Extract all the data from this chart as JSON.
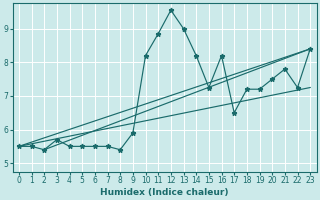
{
  "xlabel": "Humidex (Indice chaleur)",
  "bg_color": "#cceaea",
  "line_color": "#1a6b6b",
  "grid_color": "#ffffff",
  "xlim": [
    -0.5,
    23.5
  ],
  "ylim": [
    4.75,
    9.75
  ],
  "xticks": [
    0,
    1,
    2,
    3,
    4,
    5,
    6,
    7,
    8,
    9,
    10,
    11,
    12,
    13,
    14,
    15,
    16,
    17,
    18,
    19,
    20,
    21,
    22,
    23
  ],
  "yticks": [
    5,
    6,
    7,
    8,
    9
  ],
  "main_line_x": [
    0,
    1,
    2,
    3,
    4,
    5,
    6,
    7,
    8,
    9,
    10,
    11,
    12,
    13,
    14,
    15,
    16,
    17,
    18,
    19,
    20,
    21,
    22,
    23
  ],
  "main_line_y": [
    5.5,
    5.5,
    5.4,
    5.7,
    5.5,
    5.5,
    5.5,
    5.5,
    5.4,
    5.9,
    8.2,
    8.85,
    9.55,
    9.0,
    8.2,
    7.25,
    8.2,
    6.5,
    7.2,
    7.2,
    7.5,
    7.8,
    7.25,
    8.4
  ],
  "trend1_x": [
    0,
    23
  ],
  "trend1_y": [
    5.5,
    8.4
  ],
  "trend2_x": [
    0,
    23
  ],
  "trend2_y": [
    5.5,
    7.25
  ],
  "trend3_x": [
    2,
    23
  ],
  "trend3_y": [
    5.4,
    8.4
  ]
}
